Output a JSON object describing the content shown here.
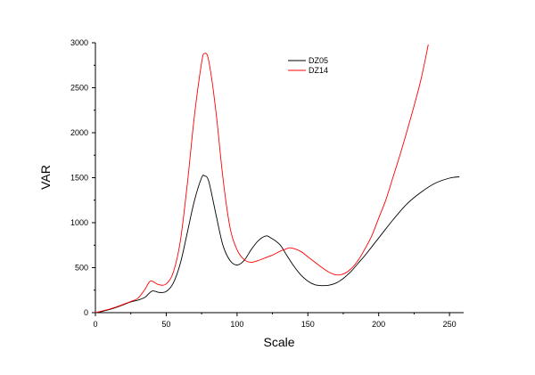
{
  "chart_data": {
    "type": "line",
    "title": "",
    "xlabel": "Scale",
    "ylabel": "VAR",
    "xlim": [
      0,
      260
    ],
    "ylim": [
      0,
      3000
    ],
    "x_ticks": [
      0,
      50,
      100,
      150,
      200,
      250
    ],
    "y_ticks": [
      0,
      500,
      1000,
      1500,
      2000,
      2500,
      3000
    ],
    "legend_position": "top-center",
    "grid": false,
    "series": [
      {
        "name": "DZ05",
        "color": "#000000",
        "x": [
          0,
          5,
          10,
          15,
          20,
          25,
          30,
          35,
          40,
          45,
          50,
          55,
          60,
          65,
          70,
          75,
          77,
          80,
          85,
          90,
          95,
          100,
          105,
          110,
          115,
          120,
          123,
          130,
          135,
          140,
          145,
          150,
          155,
          160,
          165,
          170,
          175,
          180,
          185,
          190,
          195,
          200,
          210,
          220,
          230,
          240,
          250,
          257
        ],
        "y": [
          0,
          15,
          35,
          60,
          90,
          120,
          140,
          170,
          240,
          225,
          235,
          330,
          550,
          900,
          1250,
          1500,
          1520,
          1460,
          1100,
          750,
          580,
          530,
          580,
          700,
          800,
          850,
          840,
          760,
          640,
          520,
          420,
          350,
          310,
          300,
          305,
          330,
          380,
          450,
          540,
          630,
          730,
          830,
          1030,
          1210,
          1340,
          1440,
          1495,
          1510
        ]
      },
      {
        "name": "DZ14",
        "color": "#ff0000",
        "x": [
          0,
          5,
          10,
          15,
          20,
          25,
          30,
          35,
          38,
          40,
          45,
          50,
          55,
          60,
          65,
          70,
          75,
          77,
          80,
          85,
          90,
          95,
          100,
          105,
          110,
          115,
          120,
          125,
          130,
          135,
          138,
          145,
          150,
          155,
          160,
          165,
          170,
          175,
          180,
          185,
          190,
          195,
          200,
          205,
          210,
          215,
          220,
          225,
          230,
          235
        ],
        "y": [
          0,
          20,
          40,
          65,
          95,
          125,
          160,
          260,
          340,
          350,
          310,
          320,
          450,
          800,
          1450,
          2200,
          2780,
          2880,
          2800,
          2250,
          1500,
          950,
          700,
          590,
          560,
          580,
          610,
          640,
          680,
          710,
          720,
          680,
          620,
          560,
          500,
          450,
          420,
          430,
          480,
          570,
          700,
          850,
          1050,
          1250,
          1500,
          1750,
          2020,
          2300,
          2600,
          2980
        ]
      }
    ]
  }
}
